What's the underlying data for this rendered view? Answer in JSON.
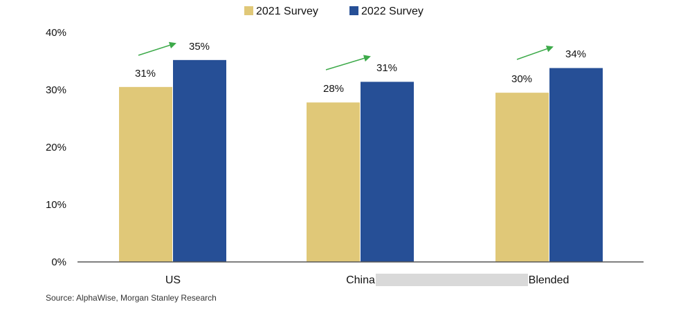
{
  "chart_data": {
    "type": "bar",
    "categories": [
      "US",
      "China",
      "Blended"
    ],
    "series": [
      {
        "name": "2021 Survey",
        "values": [
          30.5,
          27.8,
          29.5
        ],
        "labels": [
          "31%",
          "28%",
          "30%"
        ],
        "color": "#E0C878"
      },
      {
        "name": "2022 Survey",
        "values": [
          35.2,
          31.4,
          33.8
        ],
        "labels": [
          "35%",
          "31%",
          "34%"
        ],
        "color": "#264F96"
      }
    ],
    "yticks": [
      "0%",
      "10%",
      "20%",
      "30%",
      "40%"
    ],
    "ylim": [
      0,
      40
    ],
    "legend_position": "top-center",
    "annotations": "green trend arrows above each category pair",
    "arrow_color": "#3DAA4A",
    "axis_color": "#555555"
  },
  "source": "Source: AlphaWise, Morgan Stanley Research"
}
